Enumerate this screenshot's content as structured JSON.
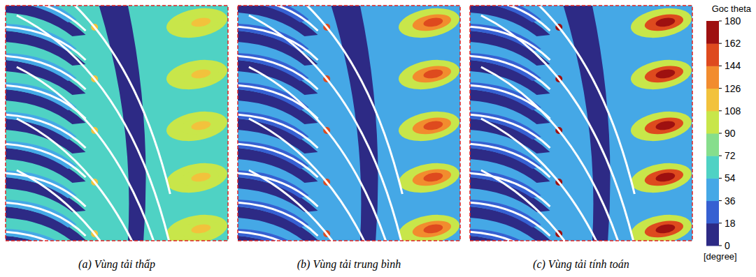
{
  "chart_data": {
    "type": "contour",
    "panels": [
      {
        "caption": "(a) Vùng tải thấp",
        "background": 63,
        "low": 9,
        "wake_peak": 117
      },
      {
        "caption": "(b) Vùng tải trung bình",
        "background": 40,
        "low": 9,
        "wake_peak": 153
      },
      {
        "caption": "(c) Vùng tải tính toán",
        "background": 40,
        "low": 9,
        "wake_peak": 171
      }
    ],
    "colorbar": {
      "title": "Goc theta",
      "unit": "[degree]",
      "range": [
        0,
        180
      ],
      "ticks": [
        0,
        18,
        36,
        54,
        72,
        90,
        108,
        126,
        144,
        162,
        180
      ],
      "colors": [
        "#2d2a85",
        "#3660d2",
        "#45a8e6",
        "#4fd2c4",
        "#86de8c",
        "#c8e64a",
        "#f2c23c",
        "#f28c2e",
        "#de4a1e",
        "#9e1010"
      ]
    }
  }
}
